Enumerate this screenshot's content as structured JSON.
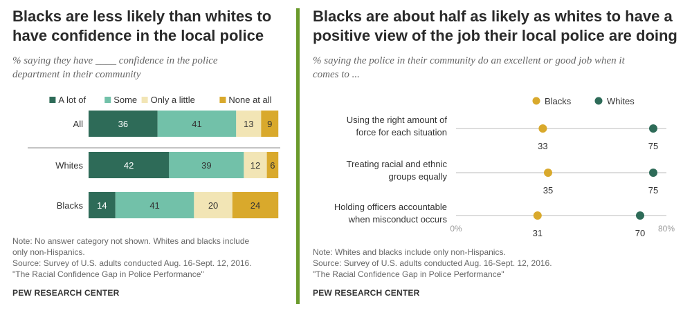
{
  "left": {
    "title_line1": "Blacks are less likely than whites to",
    "title_line2": "have confidence  in the local police",
    "subtitle_line1": "% saying they have ____ confidence in the police",
    "subtitle_line2": "department in their community",
    "note": "Note: No answer category not shown. Whites and blacks include\nonly non-Hispanics.\nSource: Survey of U.S. adults conducted Aug. 16-Sept. 12, 2016.\n\"The Racial Confidence Gap in Police Performance\"",
    "brand": "PEW RESEARCH CENTER"
  },
  "right": {
    "title_line1": "Blacks are about half as likely as whites to have a",
    "title_line2": "positive view of the job their local police are doing",
    "subtitle_line1": "% saying the police  in their community do an excellent  or good job when it",
    "subtitle_line2": "comes to ...",
    "note": "Note: Whites and blacks include only non-Hispanics.\nSource: Survey of U.S. adults conducted Aug. 16-Sept. 12, 2016.\n\"The Racial Confidence Gap in Police Performance\"",
    "brand": "PEW RESEARCH CENTER"
  },
  "chart_data": [
    {
      "type": "bar",
      "stacked": true,
      "orientation": "horizontal",
      "title": "Blacks are less likely than whites to have confidence  in the local police",
      "subtitle": "% saying they have ____ confidence in the police department in their community",
      "categories": [
        "All",
        "Whites",
        "Blacks"
      ],
      "series": [
        {
          "name": "A lot of",
          "color": "#2e6b58",
          "values": [
            36,
            42,
            14
          ]
        },
        {
          "name": "Some",
          "color": "#72c1a9",
          "values": [
            41,
            39,
            41
          ]
        },
        {
          "name": "Only a little",
          "color": "#f2e5b5",
          "values": [
            13,
            12,
            20
          ]
        },
        {
          "name": "None at all",
          "color": "#d9a92c",
          "values": [
            9,
            6,
            24
          ]
        }
      ],
      "legend": "top",
      "xlim": [
        0,
        100
      ],
      "grid": false
    },
    {
      "type": "scatter",
      "subtype": "dot-plot",
      "title": "Blacks are about half as likely as whites to have a positive view of the job their local police are doing",
      "subtitle": "% saying the police  in their community do an excellent  or good job when it comes to ...",
      "categories": [
        [
          "Using the right amount of",
          "force for each situation"
        ],
        [
          "Treating racial and ethnic",
          "groups equally"
        ],
        [
          "Holding officers accountable",
          "when misconduct occurs"
        ]
      ],
      "series": [
        {
          "name": "Blacks",
          "color": "#d9a92c",
          "values": [
            33,
            35,
            31
          ]
        },
        {
          "name": "Whites",
          "color": "#2e6b58",
          "values": [
            75,
            75,
            70
          ]
        }
      ],
      "xlim": [
        0,
        80
      ],
      "x_tick_labels": [
        "0%",
        "80%"
      ],
      "legend": "top",
      "grid": false
    }
  ]
}
